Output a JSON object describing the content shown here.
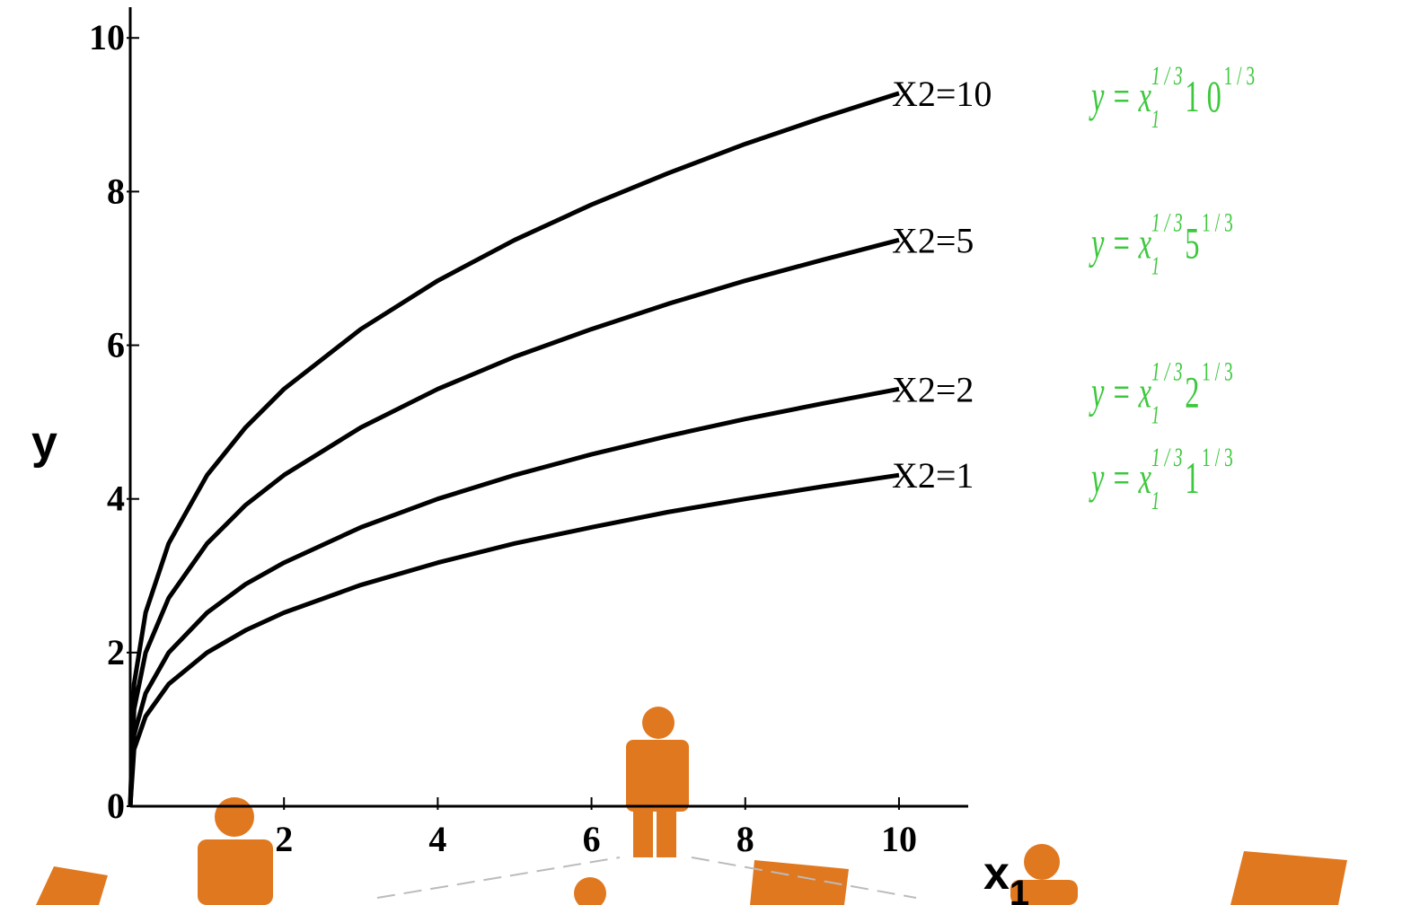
{
  "chart_data": {
    "type": "line",
    "x": [
      0,
      0.05,
      0.2,
      0.5,
      1,
      1.5,
      2,
      3,
      4,
      5,
      6,
      7,
      8,
      9,
      10
    ],
    "series": [
      {
        "name": "X2=10",
        "color": "#000000",
        "values": [
          0,
          1.59,
          2.52,
          3.42,
          4.31,
          4.93,
          5.43,
          6.21,
          6.84,
          7.37,
          7.83,
          8.24,
          8.62,
          8.96,
          9.28
        ]
      },
      {
        "name": "X2=5",
        "color": "#000000",
        "values": [
          0,
          1.26,
          2.0,
          2.71,
          3.42,
          3.92,
          4.31,
          4.93,
          5.43,
          5.85,
          6.21,
          6.54,
          6.84,
          7.11,
          7.37
        ]
      },
      {
        "name": "X2=2",
        "color": "#000000",
        "values": [
          0,
          0.93,
          1.47,
          2.0,
          2.52,
          2.89,
          3.17,
          3.63,
          4.0,
          4.31,
          4.58,
          4.82,
          5.04,
          5.24,
          5.43
        ]
      },
      {
        "name": "X2=1",
        "color": "#000000",
        "values": [
          0,
          0.74,
          1.17,
          1.59,
          2.0,
          2.29,
          2.52,
          2.88,
          3.17,
          3.42,
          3.63,
          3.83,
          4.0,
          4.16,
          4.31
        ]
      }
    ],
    "annotations": [
      {
        "lhs": "y  =  x",
        "sub": "1",
        "sup": "1 / 3",
        "factor": "1 0",
        "factor_sup": "1 / 3"
      },
      {
        "lhs": "y  =  x",
        "sub": "1",
        "sup": "1 / 3",
        "factor": "5",
        "factor_sup": "1 / 3"
      },
      {
        "lhs": "y  =  x",
        "sub": "1",
        "sup": "1 / 3",
        "factor": "2",
        "factor_sup": "1 / 3"
      },
      {
        "lhs": "y  =  x",
        "sub": "1",
        "sup": "1 / 3",
        "factor": "1",
        "factor_sup": "1 / 3"
      }
    ],
    "annotation_color": "#3cc83c",
    "y_label": "y",
    "x_label": "x",
    "x_label_sub": "1",
    "xlim": [
      0,
      10.9
    ],
    "ylim": [
      0,
      10.4
    ],
    "xticks": [
      2,
      4,
      6,
      8,
      10
    ],
    "yticks": [
      0,
      2,
      4,
      6,
      8,
      10
    ]
  }
}
